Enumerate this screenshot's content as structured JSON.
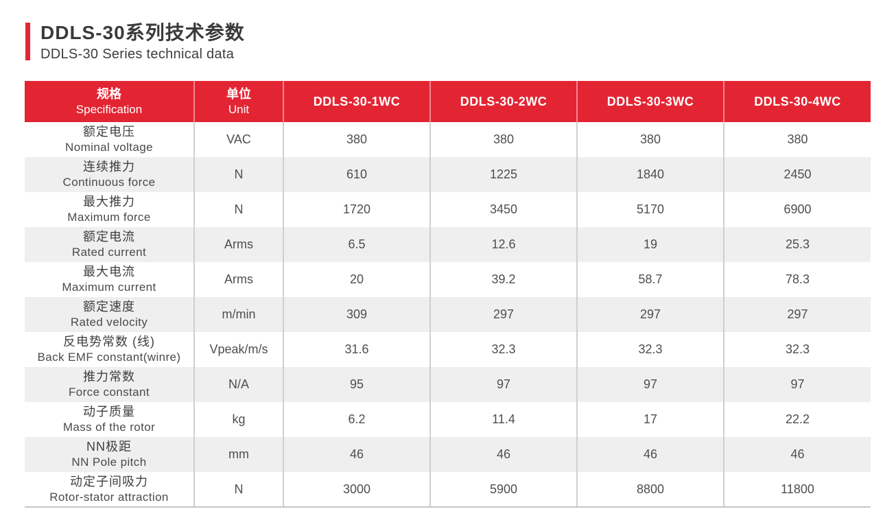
{
  "page": {
    "title_cn": "DDLS-30系列技术参数",
    "title_en": "DDLS-30 Series technical data",
    "accent_color": "#e32533",
    "row_alt_color": "#efefef"
  },
  "table": {
    "header": {
      "spec_cn": "规格",
      "spec_en": "Specification",
      "unit_cn": "单位",
      "unit_en": "Unit",
      "models": [
        "DDLS-30-1WC",
        "DDLS-30-2WC",
        "DDLS-30-3WC",
        "DDLS-30-4WC"
      ]
    },
    "rows": [
      {
        "cn": "额定电压",
        "en": "Nominal voltage",
        "unit": "VAC",
        "values": [
          "380",
          "380",
          "380",
          "380"
        ]
      },
      {
        "cn": "连续推力",
        "en": "Continuous force",
        "unit": "N",
        "values": [
          "610",
          "1225",
          "1840",
          "2450"
        ]
      },
      {
        "cn": "最大推力",
        "en": "Maximum force",
        "unit": "N",
        "values": [
          "1720",
          "3450",
          "5170",
          "6900"
        ]
      },
      {
        "cn": "额定电流",
        "en": "Rated current",
        "unit": "Arms",
        "values": [
          "6.5",
          "12.6",
          "19",
          "25.3"
        ]
      },
      {
        "cn": "最大电流",
        "en": "Maximum current",
        "unit": "Arms",
        "values": [
          "20",
          "39.2",
          "58.7",
          "78.3"
        ]
      },
      {
        "cn": "额定速度",
        "en": "Rated velocity",
        "unit": "m/min",
        "values": [
          "309",
          "297",
          "297",
          "297"
        ]
      },
      {
        "cn": "反电势常数 (线)",
        "en": "Back EMF constant(winre)",
        "unit": "Vpeak/m/s",
        "values": [
          "31.6",
          "32.3",
          "32.3",
          "32.3"
        ]
      },
      {
        "cn": "推力常数",
        "en": "Force constant",
        "unit": "N/A",
        "values": [
          "95",
          "97",
          "97",
          "97"
        ]
      },
      {
        "cn": "动子质量",
        "en": "Mass of the rotor",
        "unit": "kg",
        "values": [
          "6.2",
          "11.4",
          "17",
          "22.2"
        ]
      },
      {
        "cn": "NN极距",
        "en": "NN Pole pitch",
        "unit": "mm",
        "values": [
          "46",
          "46",
          "46",
          "46"
        ]
      },
      {
        "cn": "动定子间吸力",
        "en": "Rotor-stator attraction",
        "unit": "N",
        "values": [
          "3000",
          "5900",
          "8800",
          "11800"
        ]
      }
    ]
  }
}
